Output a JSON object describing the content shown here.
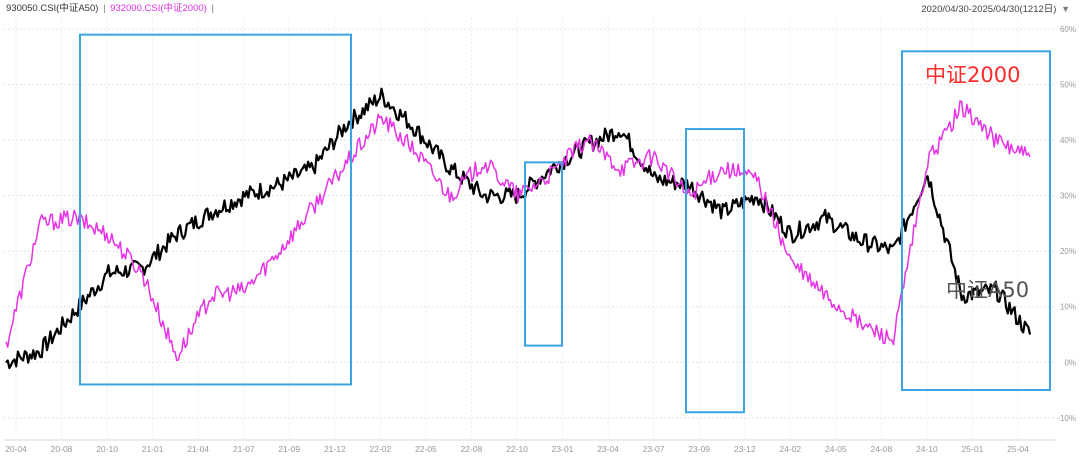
{
  "header": {
    "series0_code": "930050.CSI(中证A50)",
    "separator": "|",
    "series1_code": "932000.CSI(中证2000)",
    "separator2": "|",
    "date_range": "2020/04/30-2025/04/30(1212日)",
    "dropdown_icon": "triangle-down-icon"
  },
  "chart_data": {
    "type": "line",
    "x_ticks": [
      "20-04",
      "20-08",
      "20-10",
      "21-01",
      "21-04",
      "21-07",
      "21-09",
      "21-12",
      "22-02",
      "22-05",
      "22-08",
      "22-10",
      "23-01",
      "23-04",
      "23-07",
      "23-09",
      "23-12",
      "24-02",
      "24-05",
      "24-08",
      "24-10",
      "25-01",
      "25-04"
    ],
    "y_ticks": [
      "60%",
      "50%",
      "40%",
      "30%",
      "20%",
      "10%",
      "0%",
      "-10%"
    ],
    "ylim": [
      -14,
      62
    ],
    "grid": true,
    "series": [
      {
        "name": "930050.CSI(中证A50)",
        "color": "#000000",
        "x": [
          0,
          2,
          4,
          6,
          8,
          10,
          12,
          14,
          16,
          18,
          20,
          22,
          24,
          26,
          28,
          30,
          32,
          34,
          36,
          38,
          40,
          42,
          44,
          46,
          48,
          50,
          52,
          54,
          56,
          58,
          60
        ],
        "values": [
          0,
          2,
          9,
          16,
          17,
          23,
          27,
          30,
          32,
          35,
          43,
          48,
          42,
          35,
          30,
          30,
          35,
          39,
          42,
          33,
          32,
          27,
          30,
          23,
          26,
          22,
          20,
          34,
          12,
          13,
          5
        ]
      },
      {
        "name": "932000.CSI(中证2000)",
        "color": "#e632e6",
        "x": [
          0,
          2,
          4,
          6,
          8,
          10,
          12,
          14,
          16,
          18,
          20,
          22,
          24,
          26,
          28,
          30,
          32,
          34,
          36,
          38,
          40,
          42,
          44,
          46,
          48,
          50,
          52,
          54,
          56,
          58,
          60
        ],
        "values": [
          3,
          25,
          26,
          23,
          16,
          1,
          12,
          13,
          20,
          28,
          36,
          44,
          38,
          30,
          36,
          30,
          34,
          40,
          35,
          37,
          30,
          35,
          33,
          18,
          12,
          7,
          4,
          36,
          46,
          40,
          37
        ]
      }
    ],
    "annotations": [
      {
        "text": "中证2000",
        "color": "#ff2a2a"
      },
      {
        "text": "中证A50",
        "color": "#555555"
      }
    ],
    "highlight_color": "#3aa5e0",
    "highlight_boxes": [
      {
        "x0": 80,
        "x1": 351,
        "y_top": 59,
        "y_bottom": -4
      },
      {
        "x0": 525,
        "x1": 562,
        "y_top": 36,
        "y_bottom": 3
      },
      {
        "x0": 686,
        "x1": 744,
        "y_top": 42,
        "y_bottom": -9
      },
      {
        "x0": 902,
        "x1": 1050,
        "y_top": 56,
        "y_bottom": -5
      }
    ]
  }
}
